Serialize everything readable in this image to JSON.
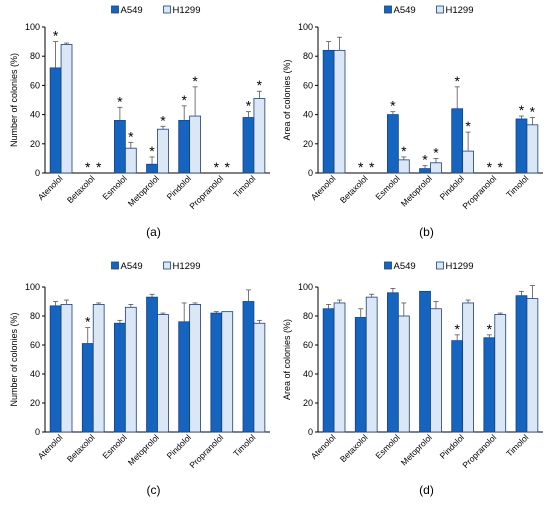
{
  "colors": {
    "A549": "#1565c0",
    "H1299": "#dbe7f5",
    "outline": "#1a3f7a",
    "axis": "#000000"
  },
  "chart_data": [
    {
      "type": "bar",
      "panel_label": "(a)",
      "ylabel": "Number of colonies (%)",
      "ylim": [
        0,
        100
      ],
      "yticks": [
        0,
        20,
        40,
        60,
        80,
        100
      ],
      "legend_position": "top",
      "categories": [
        "Atenolol",
        "Betaxolol",
        "Esmolol",
        "Metoprolol",
        "Pindolol",
        "Propranolol",
        "Timolol"
      ],
      "series": [
        {
          "name": "A549",
          "values": [
            72,
            0,
            36,
            6,
            36,
            0,
            38
          ],
          "errors": [
            18,
            0,
            9,
            5,
            10,
            0,
            4
          ],
          "significant": [
            true,
            true,
            true,
            true,
            true,
            true,
            true
          ]
        },
        {
          "name": "H1299",
          "values": [
            88,
            0,
            17,
            30,
            39,
            0,
            51
          ],
          "errors": [
            1,
            0,
            4,
            2,
            20,
            0,
            5
          ],
          "significant": [
            false,
            true,
            true,
            true,
            true,
            true,
            true
          ]
        }
      ]
    },
    {
      "type": "bar",
      "panel_label": "(b)",
      "ylabel": "Area of colonies (%)",
      "ylim": [
        0,
        100
      ],
      "yticks": [
        0,
        20,
        40,
        60,
        80,
        100
      ],
      "legend_position": "top",
      "categories": [
        "Atenolol",
        "Betaxolol",
        "Esmolol",
        "Metoprolol",
        "Pindolol",
        "Propranolol",
        "Timolol"
      ],
      "series": [
        {
          "name": "A549",
          "values": [
            84,
            0,
            40,
            3,
            44,
            0,
            37
          ],
          "errors": [
            6,
            0,
            2,
            2,
            15,
            0,
            2
          ],
          "significant": [
            false,
            true,
            true,
            true,
            true,
            true,
            true
          ]
        },
        {
          "name": "H1299",
          "values": [
            84,
            0,
            9,
            7,
            15,
            0,
            33
          ],
          "errors": [
            9,
            0,
            2,
            3,
            13,
            0,
            5
          ],
          "significant": [
            false,
            true,
            true,
            true,
            true,
            true,
            true
          ]
        }
      ]
    },
    {
      "type": "bar",
      "panel_label": "(c)",
      "ylabel": "Number of colonies (%)",
      "ylim": [
        0,
        100
      ],
      "yticks": [
        0,
        20,
        40,
        60,
        80,
        100
      ],
      "legend_position": "top",
      "categories": [
        "Atenolol",
        "Betaxolol",
        "Esmolol",
        "Metoprolol",
        "Pindolol",
        "Propranolol",
        "Timolol"
      ],
      "series": [
        {
          "name": "A549",
          "values": [
            87,
            61,
            75,
            93,
            76,
            82,
            90
          ],
          "errors": [
            3,
            11,
            2,
            2,
            13,
            1,
            8
          ],
          "significant": [
            false,
            true,
            false,
            false,
            false,
            false,
            false
          ]
        },
        {
          "name": "H1299",
          "values": [
            88,
            88,
            86,
            81,
            88,
            83,
            75
          ],
          "errors": [
            3,
            1,
            2,
            1,
            1,
            0,
            2
          ],
          "significant": [
            false,
            false,
            false,
            false,
            false,
            false,
            false
          ]
        }
      ]
    },
    {
      "type": "bar",
      "panel_label": "(d)",
      "ylabel": "Area of colonies (%)",
      "ylim": [
        0,
        100
      ],
      "yticks": [
        0,
        20,
        40,
        60,
        80,
        100
      ],
      "legend_position": "top",
      "categories": [
        "Atenolol",
        "Betaxolol",
        "Esmolol",
        "Metoprolol",
        "Pindolol",
        "Propranolol",
        "Timolol"
      ],
      "series": [
        {
          "name": "A549",
          "values": [
            85,
            79,
            96,
            97,
            63,
            65,
            94
          ],
          "errors": [
            3,
            6,
            3,
            0,
            4,
            2,
            3
          ],
          "significant": [
            false,
            false,
            false,
            false,
            true,
            true,
            false
          ]
        },
        {
          "name": "H1299",
          "values": [
            89,
            93,
            80,
            85,
            89,
            81,
            92
          ],
          "errors": [
            2,
            2,
            9,
            5,
            2,
            1,
            9
          ],
          "significant": [
            false,
            false,
            false,
            false,
            false,
            false,
            false
          ]
        }
      ]
    }
  ]
}
